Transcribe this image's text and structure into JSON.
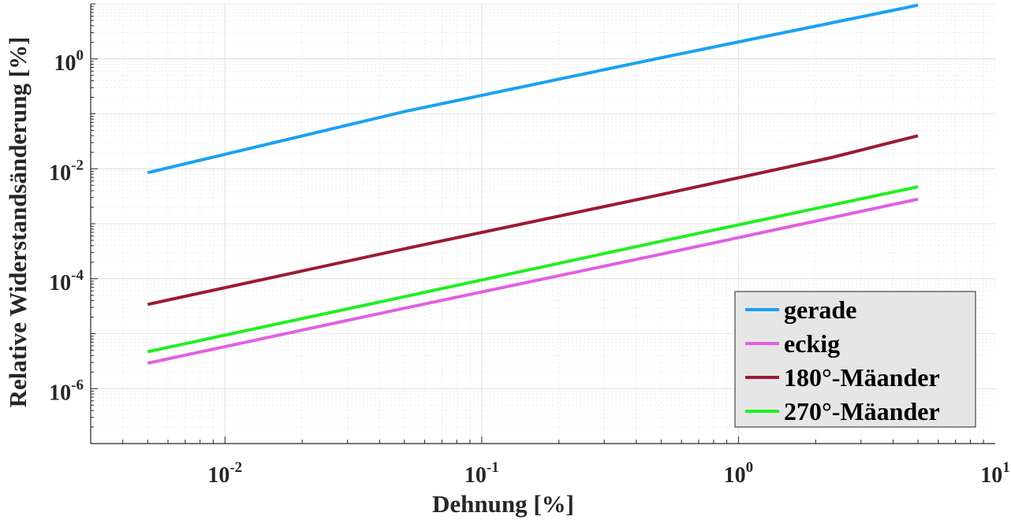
{
  "chart_data": {
    "type": "line",
    "xlabel": "Dehnung [%]",
    "ylabel": "Relative Widerstandsänderung [%]",
    "x_scale": "log",
    "y_scale": "log",
    "xlim": [
      0.003,
      10
    ],
    "ylim": [
      1e-07,
      10
    ],
    "grid": true,
    "x_ticks": [
      {
        "base": "10",
        "exp": "-2",
        "value": 0.01
      },
      {
        "base": "10",
        "exp": "-1",
        "value": 0.1
      },
      {
        "base": "10",
        "exp": "0",
        "value": 1
      },
      {
        "base": "10",
        "exp": "1",
        "value": 10
      }
    ],
    "y_ticks": [
      {
        "base": "10",
        "exp": "-6",
        "value": 1e-06
      },
      {
        "base": "10",
        "exp": "-4",
        "value": 0.0001
      },
      {
        "base": "10",
        "exp": "-2",
        "value": 0.01
      },
      {
        "base": "10",
        "exp": "0",
        "value": 1
      }
    ],
    "legend_position": "bottom-right",
    "series": [
      {
        "name": "gerade",
        "color": "#1ba1f2",
        "x": [
          0.005,
          0.05,
          0.5,
          5
        ],
        "y": [
          0.0085,
          0.11,
          1.05,
          9.5
        ]
      },
      {
        "name": "eckig",
        "color": "#e060e0",
        "x": [
          0.005,
          0.05,
          0.5,
          5
        ],
        "y": [
          2.9e-06,
          2.9e-05,
          0.00028,
          0.0028
        ]
      },
      {
        "name": "180°-Mäander",
        "color": "#9b1b30",
        "x": [
          0.005,
          0.05,
          0.5,
          2.3,
          5
        ],
        "y": [
          3.4e-05,
          0.00035,
          0.0034,
          0.016,
          0.04
        ]
      },
      {
        "name": "270°-Mäander",
        "color": "#22ee22",
        "x": [
          0.005,
          0.05,
          0.5,
          5
        ],
        "y": [
          4.7e-06,
          4.7e-05,
          0.00048,
          0.0047
        ]
      }
    ]
  }
}
